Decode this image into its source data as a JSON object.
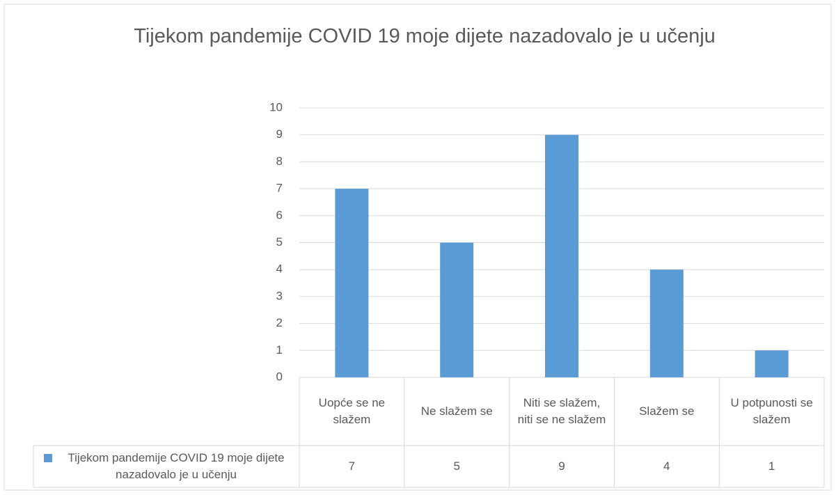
{
  "chart_data": {
    "type": "bar",
    "title": "Tijekom pandemije COVID 19 moje dijete nazadovalo je u učenju",
    "categories": [
      "Uopće se ne slažem",
      "Ne slažem se",
      "Niti se slažem, niti se ne slažem",
      "Slažem se",
      "U potpunosti se slažem"
    ],
    "series": [
      {
        "name": "Tijekom pandemije COVID 19 moje dijete nazadovalo je u učenju",
        "color": "#5b9bd5",
        "values": [
          7,
          5,
          9,
          4,
          1
        ]
      }
    ],
    "ylim": [
      0,
      10
    ],
    "yticks": [
      0,
      1,
      2,
      3,
      4,
      5,
      6,
      7,
      8,
      9,
      10
    ],
    "grid": true,
    "data_table": true
  }
}
